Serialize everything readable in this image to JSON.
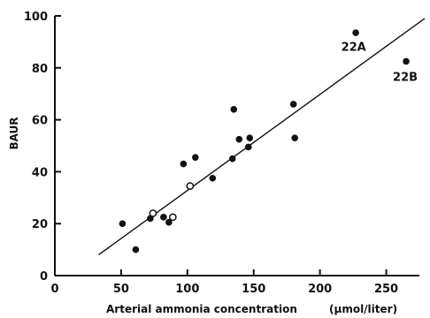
{
  "chart_data": {
    "type": "scatter",
    "title": "",
    "xlabel": "Arterial ammonia concentration",
    "xlabel_unit": "(µmol/liter)",
    "ylabel": "BAUR",
    "xlim": [
      0,
      275
    ],
    "ylim": [
      0,
      100
    ],
    "x_ticks": [
      0,
      50,
      100,
      150,
      200,
      250
    ],
    "y_ticks": [
      0,
      20,
      40,
      60,
      80,
      100
    ],
    "x_tick_labels": [
      "0",
      "50",
      "100",
      "150",
      "200",
      "250"
    ],
    "y_tick_labels": [
      "0",
      "20",
      "40",
      "60",
      "80",
      "100"
    ],
    "grid": false,
    "legend": "none",
    "series": [
      {
        "marker": "filled",
        "color": "#111111",
        "points": [
          {
            "x": 51,
            "y": 20
          },
          {
            "x": 61,
            "y": 10
          },
          {
            "x": 72,
            "y": 22
          },
          {
            "x": 82,
            "y": 22.5
          },
          {
            "x": 86,
            "y": 20.5
          },
          {
            "x": 97,
            "y": 43
          },
          {
            "x": 106,
            "y": 45.5
          },
          {
            "x": 119,
            "y": 37.5
          },
          {
            "x": 134,
            "y": 45
          },
          {
            "x": 135,
            "y": 64
          },
          {
            "x": 139,
            "y": 52.5
          },
          {
            "x": 146,
            "y": 49.5
          },
          {
            "x": 147,
            "y": 53
          },
          {
            "x": 180,
            "y": 66
          },
          {
            "x": 181,
            "y": 53
          },
          {
            "x": 227,
            "y": 93.5
          },
          {
            "x": 265,
            "y": 82.5
          }
        ]
      },
      {
        "marker": "open",
        "color": "#111111",
        "points": [
          {
            "x": 74,
            "y": 24
          },
          {
            "x": 89,
            "y": 22.5
          },
          {
            "x": 102,
            "y": 34.5
          }
        ]
      }
    ],
    "fit_line": {
      "x": [
        33,
        279
      ],
      "y": [
        8,
        99
      ]
    },
    "annotations": [
      {
        "text": "22A",
        "x": 216,
        "y": 86.5
      },
      {
        "text": "22B",
        "x": 255,
        "y": 75
      }
    ]
  }
}
